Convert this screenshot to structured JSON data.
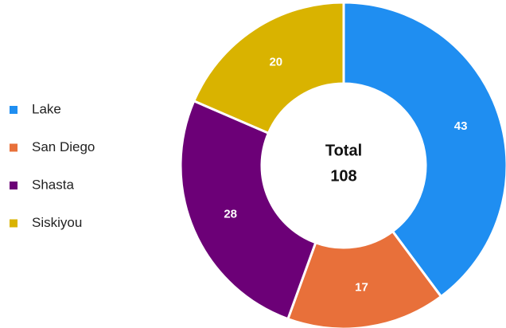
{
  "chart_data": {
    "type": "donut",
    "categories": [
      "Lake",
      "San Diego",
      "Shasta",
      "Siskiyou"
    ],
    "values": [
      43,
      17,
      28,
      20
    ],
    "colors": [
      "#1f8ef1",
      "#e8703a",
      "#6c0077",
      "#d9b300"
    ],
    "center_label": "Total",
    "total": 108,
    "legend": "left"
  }
}
